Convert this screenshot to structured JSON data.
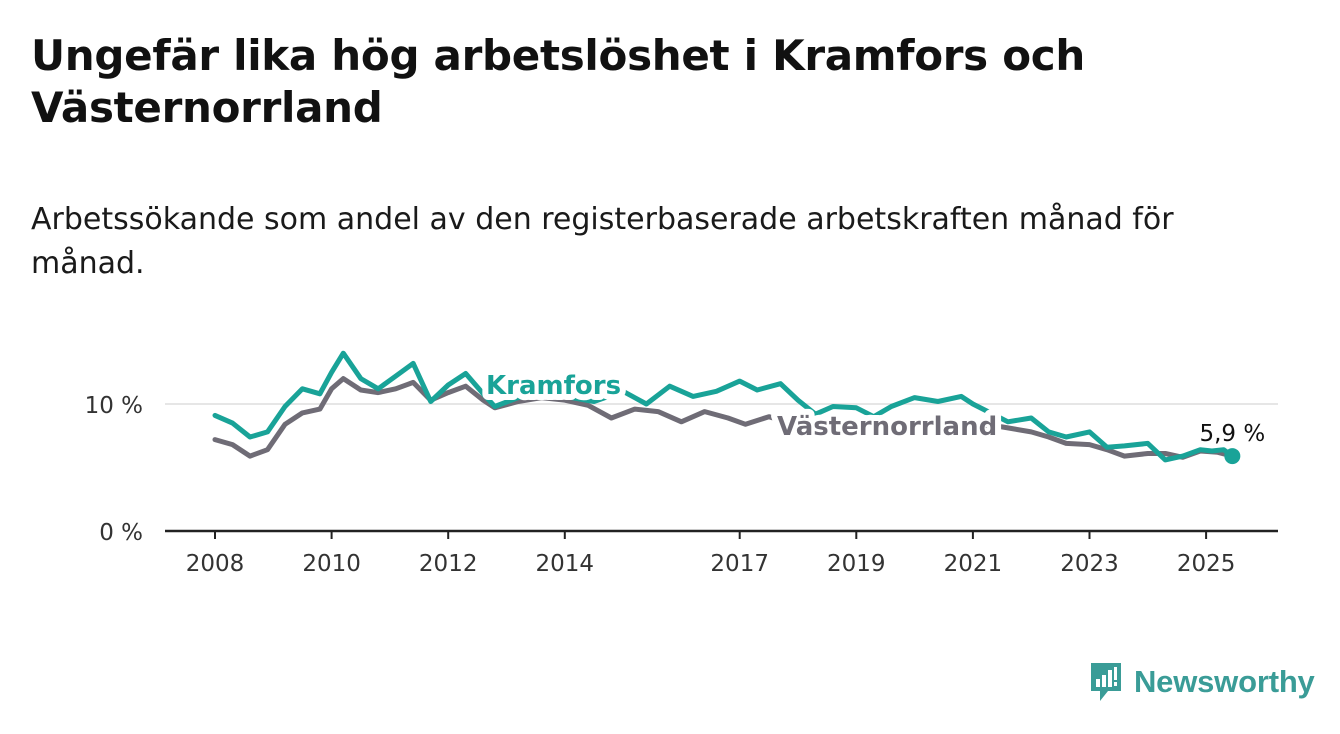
{
  "title": "Ungefär lika hög arbetslöshet i Kramfors och Västernorrland",
  "subtitle": "Arbetssökande som andel av den registerbaserade arbetskraften månad för månad.",
  "brand": "Newsworthy",
  "colors": {
    "kramfors": "#19a398",
    "vasternorrland": "#6f6c76",
    "axis": "#222222",
    "grid": "#dddddd",
    "brand": "#3a9c97"
  },
  "chart_data": {
    "type": "line",
    "title": "Ungefär lika hög arbetslöshet i Kramfors och Västernorrland",
    "subtitle": "Arbetssökande som andel av den registerbaserade arbetskraften månad för månad.",
    "xlabel": "",
    "ylabel": "",
    "xlim": [
      2008.0,
      2027.5
    ],
    "ylim": [
      0,
      16
    ],
    "y_ticks": [
      0,
      10
    ],
    "y_tick_labels": [
      "0 %",
      "10 %"
    ],
    "x_ticks": [
      2008,
      2010,
      2012,
      2014,
      2017,
      2019,
      2021,
      2023,
      2025
    ],
    "x_tick_labels": [
      "2008",
      "2010",
      "2012",
      "2014",
      "2017",
      "2019",
      "2021",
      "2023",
      "2025"
    ],
    "grid": "y-major",
    "legend": "direct labels on lines",
    "end_label": "5,9 %",
    "series": [
      {
        "name": "Kramfors",
        "x": [
          2008.0,
          2008.3,
          2008.6,
          2008.9,
          2009.2,
          2009.5,
          2009.8,
          2010.0,
          2010.2,
          2010.5,
          2010.8,
          2011.1,
          2011.4,
          2011.7,
          2012.0,
          2012.3,
          2012.6,
          2012.8,
          2013.2,
          2013.6,
          2014.0,
          2014.5,
          2015.0,
          2015.4,
          2015.8,
          2016.2,
          2016.6,
          2017.0,
          2017.3,
          2017.7,
          2018.0,
          2018.3,
          2018.6,
          2019.0,
          2019.3,
          2019.6,
          2020.0,
          2020.4,
          2020.8,
          2021.0,
          2021.3,
          2021.6,
          2022.0,
          2022.3,
          2022.6,
          2023.0,
          2023.3,
          2023.6,
          2024.0,
          2024.3,
          2024.6,
          2024.9,
          2025.1,
          2025.3,
          2025.45
        ],
        "values": [
          9.1,
          8.5,
          7.4,
          7.8,
          9.8,
          11.2,
          10.8,
          12.5,
          14.0,
          12.0,
          11.2,
          12.2,
          13.2,
          10.2,
          11.5,
          12.4,
          10.8,
          9.8,
          10.5,
          10.8,
          10.6,
          10.2,
          11.0,
          10.0,
          11.4,
          10.6,
          11.0,
          11.8,
          11.1,
          11.6,
          10.3,
          9.2,
          9.8,
          9.7,
          9.0,
          9.8,
          10.5,
          10.2,
          10.6,
          10.0,
          9.3,
          8.6,
          8.9,
          7.8,
          7.4,
          7.8,
          6.6,
          6.7,
          6.9,
          5.6,
          5.9,
          6.4,
          6.3,
          6.4,
          5.9
        ]
      },
      {
        "name": "Västernorrland",
        "x": [
          2008.0,
          2008.3,
          2008.6,
          2008.9,
          2009.2,
          2009.5,
          2009.8,
          2010.0,
          2010.2,
          2010.5,
          2010.8,
          2011.1,
          2011.4,
          2011.7,
          2012.0,
          2012.3,
          2012.6,
          2012.8,
          2013.2,
          2013.6,
          2014.0,
          2014.4,
          2014.8,
          2015.2,
          2015.6,
          2016.0,
          2016.4,
          2016.8,
          2017.1,
          2017.5,
          2018.0,
          2018.5,
          2019.0,
          2019.5,
          2020.0,
          2020.5,
          2021.0,
          2021.5,
          2022.0,
          2022.3,
          2022.6,
          2023.0,
          2023.3,
          2023.6,
          2024.0,
          2024.3,
          2024.6,
          2024.9,
          2025.2,
          2025.45
        ],
        "values": [
          7.2,
          6.8,
          5.9,
          6.4,
          8.4,
          9.3,
          9.6,
          11.2,
          12.0,
          11.1,
          10.9,
          11.2,
          11.7,
          10.3,
          10.9,
          11.4,
          10.3,
          9.7,
          10.2,
          10.5,
          10.3,
          9.9,
          8.9,
          9.6,
          9.4,
          8.6,
          9.4,
          8.9,
          8.4,
          9.0,
          8.3,
          8.6,
          8.5,
          8.3,
          8.6,
          8.8,
          8.4,
          8.2,
          7.8,
          7.4,
          6.9,
          6.8,
          6.4,
          5.9,
          6.1,
          6.1,
          5.8,
          6.3,
          6.2,
          5.9
        ]
      }
    ]
  }
}
